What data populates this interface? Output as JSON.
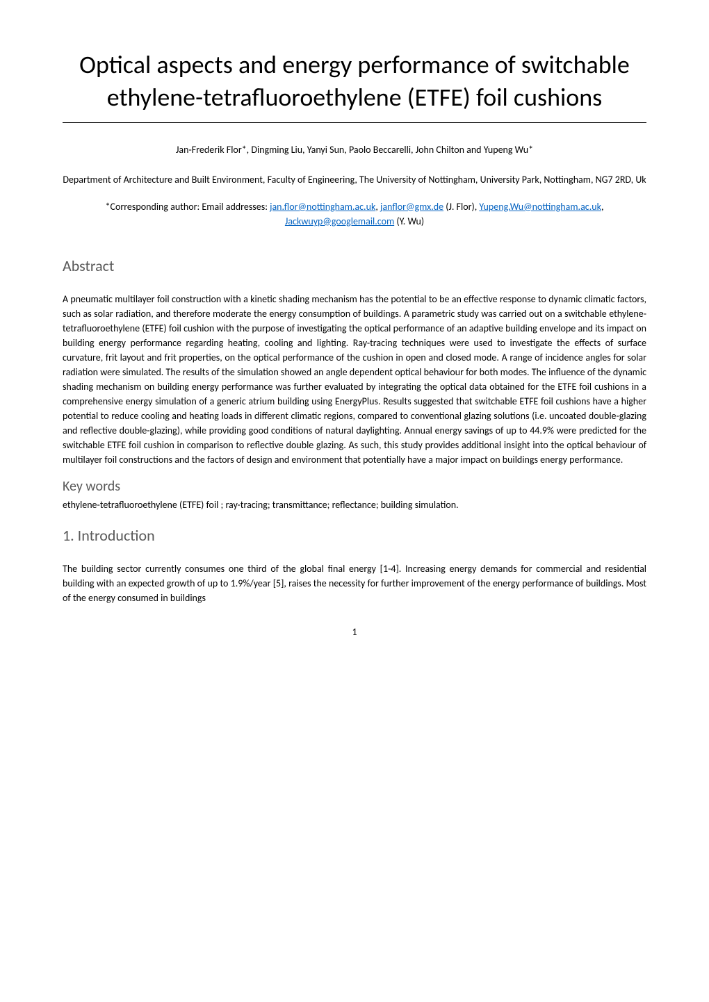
{
  "title": "Optical aspects and energy performance of switchable ethylene-tetrafluoroethylene (ETFE) foil cushions",
  "authors": "Jan-Frederik Flor*, Dingming Liu, Yanyi Sun, Paolo Beccarelli, John Chilton and Yupeng Wu*",
  "affiliation": "Department of Architecture and Built Environment, Faculty of Engineering, The University of Nottingham, University Park, Nottingham, NG7 2RD, Uk",
  "corresponding_prefix": "*Corresponding author: Email addresses: ",
  "emails": {
    "email1": "jan.flor@nottingham.ac.uk",
    "email2": "janflor@gmx.de",
    "email3": "Yupeng.Wu@nottingham.ac.uk",
    "email4": "Jackwuyp@googlemail.com"
  },
  "corresponding_names": {
    "name1": " (J. Flor), ",
    "name2": " (Y. Wu)"
  },
  "abstract_heading": "Abstract",
  "abstract_body": "A pneumatic multilayer foil construction with a kinetic shading mechanism has the potential to be an effective response to dynamic climatic factors, such as solar radiation, and therefore moderate the energy consumption of buildings. A parametric study was carried out on a switchable ethylene-tetrafluoroethylene (ETFE) foil cushion with the purpose of investigating the optical performance of an adaptive building envelope and its impact on building energy performance regarding heating, cooling and lighting. Ray-tracing techniques were used to investigate the effects of surface curvature, frit layout and frit properties, on the optical performance of the cushion in open and closed mode. A range of incidence angles for solar radiation were simulated. The results of the simulation showed an angle dependent optical behaviour for both modes. The influence of the dynamic shading mechanism on building energy performance was further evaluated by integrating the optical data obtained for the ETFE foil cushions in a comprehensive energy simulation of a generic atrium building using EnergyPlus. Results suggested that switchable ETFE foil cushions have a higher potential to reduce cooling and heating loads in different climatic regions, compared to conventional glazing solutions (i.e. uncoated double-glazing and reflective double-glazing), while providing good conditions of natural daylighting. Annual energy savings of up to 44.9% were predicted for the switchable ETFE foil cushion in comparison to reflective double glazing. As such, this study provides additional insight into the optical behaviour of multilayer foil constructions and the factors of design and environment that potentially have a major impact on buildings energy performance.",
  "keywords_heading": "Key words",
  "keywords_body": "ethylene-tetrafluoroethylene (ETFE) foil ; ray-tracing; transmittance; reflectance; building simulation.",
  "intro_heading": "1. Introduction",
  "intro_body": "The building sector currently consumes one third of the global final energy [1-4]. Increasing energy demands for commercial and residential building with an expected growth of up to 1.9%/year [5], raises the necessity for further improvement of the energy performance of buildings. Most of the energy consumed in buildings",
  "page_number": "1",
  "colors": {
    "background": "#ffffff",
    "text": "#000000",
    "heading_gray": "#595959",
    "link_blue": "#0563c1",
    "border": "#000000"
  },
  "fonts": {
    "body_family": "Calibri",
    "heading_family": "Calibri Light",
    "title_size": 36,
    "section_heading_size": 22,
    "subheading_size": 20,
    "body_size": 14
  }
}
